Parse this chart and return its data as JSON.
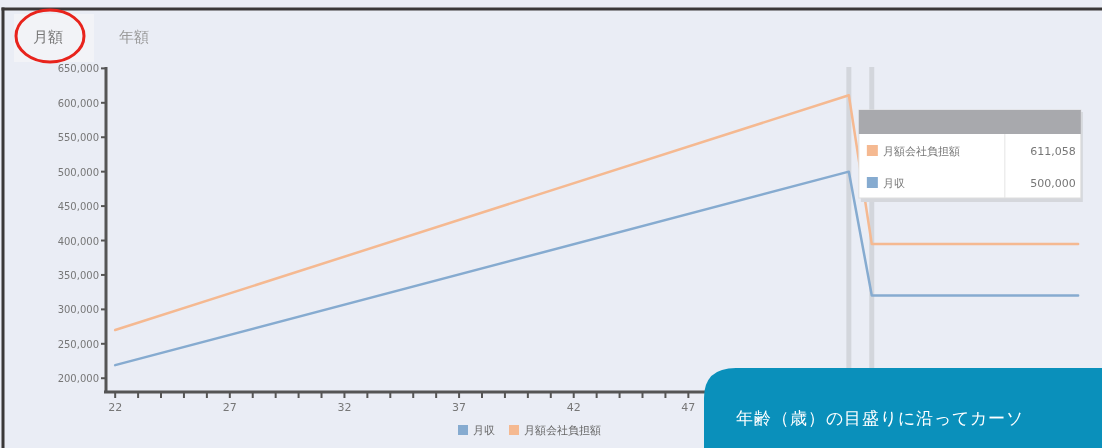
{
  "chart_data": {
    "type": "line",
    "series": [
      {
        "name": "月収",
        "color": "#86abd0",
        "x": [
          22,
          54,
          55,
          64
        ],
        "values": [
          219000,
          500000,
          320000,
          320000
        ]
      },
      {
        "name": "月額会社負担額",
        "color": "#f5b991",
        "x": [
          22,
          54,
          55,
          64
        ],
        "values": [
          270000,
          611058,
          395000,
          395000
        ]
      }
    ],
    "xlim": [
      21.6,
      64.3
    ],
    "xticks": [
      22,
      {
        "value": 23,
        "label": null
      },
      {
        "value": 24,
        "label": null
      },
      {
        "value": 25,
        "label": null
      },
      {
        "value": 26,
        "label": null
      },
      27,
      {
        "value": 28,
        "label": null
      },
      {
        "value": 29,
        "label": null
      },
      {
        "value": 30,
        "label": null
      },
      {
        "value": 31,
        "label": null
      },
      32,
      {
        "value": 33,
        "label": null
      },
      {
        "value": 34,
        "label": null
      },
      {
        "value": 35,
        "label": null
      },
      {
        "value": 36,
        "label": null
      },
      37,
      {
        "value": 38,
        "label": null
      },
      {
        "value": 39,
        "label": null
      },
      {
        "value": 40,
        "label": null
      },
      {
        "value": 41,
        "label": null
      },
      42,
      {
        "value": 43,
        "label": null
      },
      {
        "value": 44,
        "label": null
      },
      {
        "value": 45,
        "label": null
      },
      {
        "value": 46,
        "label": null
      },
      47
    ],
    "ylim": [
      180000,
      652000
    ],
    "yticks": [
      {
        "value": 200000,
        "label": "200,000"
      },
      {
        "value": 250000,
        "label": "250,000"
      },
      {
        "value": 300000,
        "label": "300,000"
      },
      {
        "value": 350000,
        "label": "350,000"
      },
      {
        "value": 400000,
        "label": "400,000"
      },
      {
        "value": 450000,
        "label": "450,000"
      },
      {
        "value": 500000,
        "label": "500,000"
      },
      {
        "value": 550000,
        "label": "550,000"
      },
      {
        "value": 600000,
        "label": "600,000"
      },
      {
        "value": 650000,
        "label": "650,000"
      }
    ],
    "ref_lines": [
      {
        "axis": "x",
        "value": 54,
        "color": "#d3d6dc"
      },
      {
        "axis": "x",
        "value": 55,
        "color": "#d3d6dc"
      }
    ],
    "annotations": [
      "月額",
      "年額",
      "年齢（歳）の目盛りに沿ってカーソ",
      "月額会社負担額",
      "611,058",
      "月収",
      "500,000"
    ],
    "legend": "bottom",
    "grid": false,
    "marker": "none",
    "line_style": "solid"
  }
}
